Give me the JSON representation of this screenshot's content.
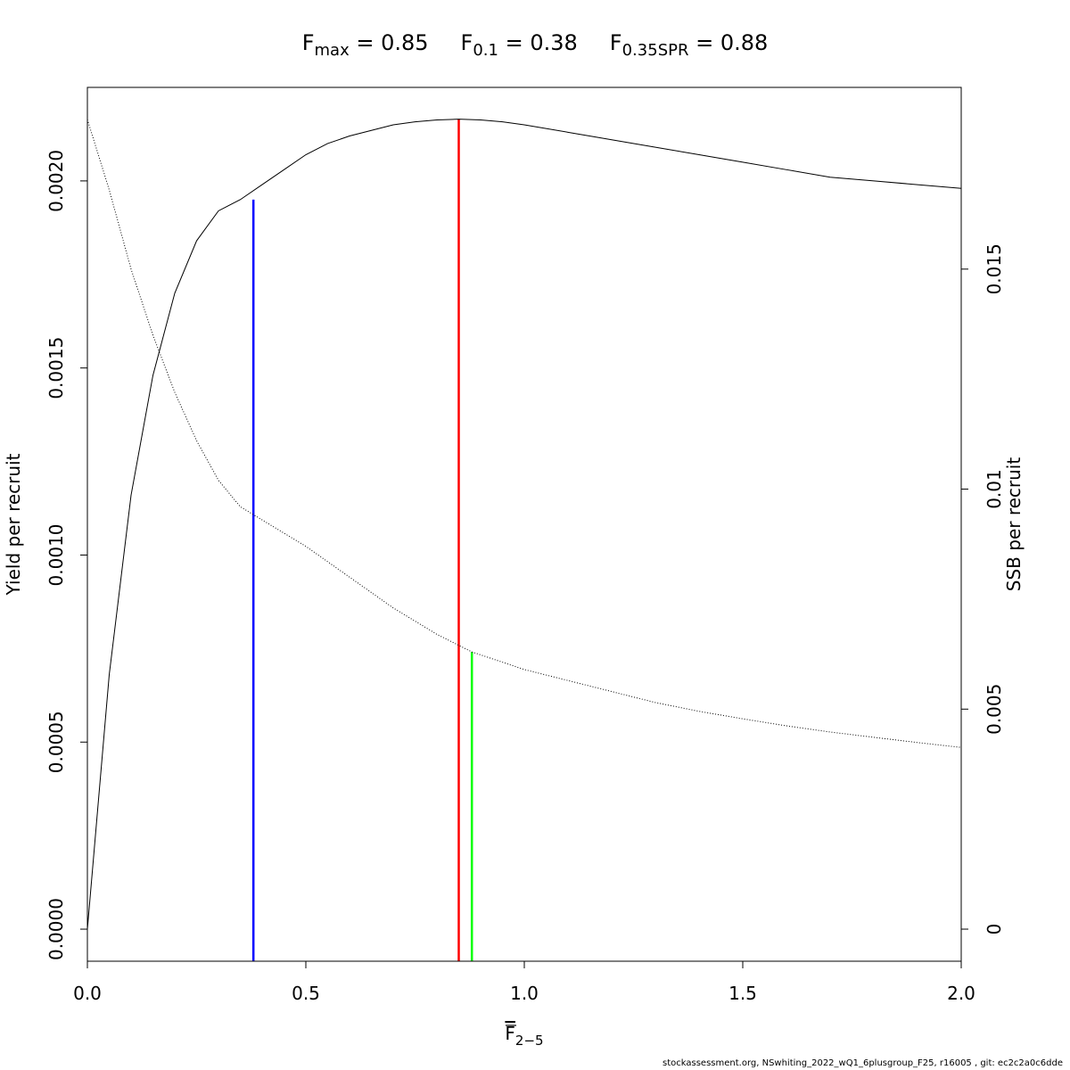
{
  "chart_data": {
    "type": "line",
    "title_parts": [
      {
        "base": "F",
        "sub": "max",
        "eq": " = ",
        "value": "0.85"
      },
      {
        "base": "F",
        "sub": "0.1",
        "eq": " = ",
        "value": "0.38"
      },
      {
        "base": "F",
        "sub": "0.35SPR",
        "eq": " = ",
        "value": "0.88"
      }
    ],
    "xlabel": {
      "base": "F",
      "sub": "2−5",
      "overline": true
    },
    "ylabel_left": "Yield per recruit",
    "ylabel_right": "SSB per recruit",
    "xlim": [
      0,
      2
    ],
    "ylim_left": [
      -8.57e-05,
      0.00225
    ],
    "ylim_right": [
      -0.000729,
      0.01913
    ],
    "x_ticks": [
      0,
      0.5,
      1.0,
      1.5,
      2.0
    ],
    "x_tick_labels": [
      "0.0",
      "0.5",
      "1.0",
      "1.5",
      "2.0"
    ],
    "y_left_ticks": [
      0,
      0.0005,
      0.001,
      0.0015,
      0.002
    ],
    "y_left_tick_labels": [
      "0.0000",
      "0.0005",
      "0.0010",
      "0.0015",
      "0.0020"
    ],
    "y_right_ticks": [
      0,
      0.005,
      0.01,
      0.015
    ],
    "y_right_tick_labels": [
      "0",
      "0.005",
      "0.01",
      "0.015"
    ],
    "series": [
      {
        "name": "Yield per recruit",
        "axis": "left",
        "style": "solid",
        "color": "#000000",
        "x": [
          0,
          0.05,
          0.1,
          0.15,
          0.2,
          0.25,
          0.3,
          0.35,
          0.4,
          0.45,
          0.5,
          0.55,
          0.6,
          0.65,
          0.7,
          0.75,
          0.8,
          0.85,
          0.9,
          0.95,
          1.0,
          1.1,
          1.2,
          1.3,
          1.4,
          1.5,
          1.6,
          1.7,
          1.8,
          1.9,
          2.0
        ],
        "y": [
          0,
          0.00068,
          0.00116,
          0.00148,
          0.0017,
          0.00184,
          0.00192,
          0.00195,
          0.00199,
          0.00203,
          0.00207,
          0.0021,
          0.00212,
          0.002135,
          0.00215,
          0.002158,
          0.002163,
          0.002165,
          0.002163,
          0.002158,
          0.00215,
          0.00213,
          0.00211,
          0.00209,
          0.00207,
          0.00205,
          0.00203,
          0.00201,
          0.002,
          0.00199,
          0.00198
        ]
      },
      {
        "name": "SSB per recruit",
        "axis": "right",
        "style": "dotted",
        "color": "#000000",
        "x": [
          0,
          0.05,
          0.1,
          0.15,
          0.2,
          0.25,
          0.3,
          0.35,
          0.4,
          0.5,
          0.6,
          0.7,
          0.8,
          0.88,
          1.0,
          1.1,
          1.2,
          1.3,
          1.4,
          1.5,
          1.6,
          1.7,
          1.8,
          1.9,
          2.0
        ],
        "y": [
          0.0184,
          0.0168,
          0.015,
          0.0135,
          0.0122,
          0.0111,
          0.0102,
          0.0096,
          0.0093,
          0.0087,
          0.008,
          0.0073,
          0.0067,
          0.0063,
          0.0059,
          0.00565,
          0.0054,
          0.00515,
          0.00495,
          0.00478,
          0.00462,
          0.00448,
          0.00436,
          0.00424,
          0.00413
        ]
      }
    ],
    "reference_lines": [
      {
        "name": "F0.1",
        "x": 0.38,
        "color": "#0000ff",
        "y_top": 0.00195,
        "axis": "left"
      },
      {
        "name": "Fmax",
        "x": 0.85,
        "color": "#ff0000",
        "y_top": 0.002165,
        "axis": "left"
      },
      {
        "name": "F0.35SPR",
        "x": 0.88,
        "color": "#00ff00",
        "y_top": 0.0063,
        "axis": "right"
      }
    ],
    "grid": false,
    "legend": "none"
  },
  "footer": "stockassessment.org, NSwhiting_2022_wQ1_6plusgroup_F25, r16005 , git: ec2c2a0c6dde"
}
